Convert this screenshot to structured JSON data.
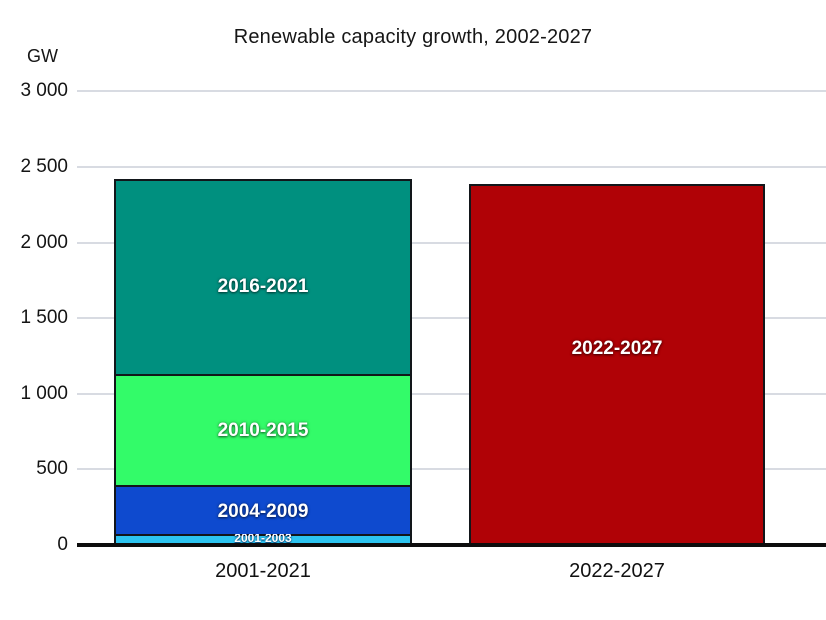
{
  "chart": {
    "title": "Renewable capacity growth, 2002-2027",
    "unit_label": "GW"
  },
  "colors": {
    "background": "#FFFFFF",
    "gridline": "#D8DBE2",
    "axis": "#0D0D0D",
    "text": "#141414",
    "segment_border": "#12161A",
    "segment_label_text": "#FFFFFF"
  },
  "chart_data": {
    "type": "bar",
    "stacked": true,
    "title": "Renewable capacity growth, 2002-2027",
    "xlabel": "",
    "ylabel": "GW",
    "ylim": [
      0,
      3000
    ],
    "ytick_interval": 500,
    "grid": true,
    "legend_position": "none (period labels drawn inside bar segments)",
    "yticks": [
      {
        "value": 3000,
        "label": "3 000"
      },
      {
        "value": 2500,
        "label": "2 500"
      },
      {
        "value": 2000,
        "label": "2 000"
      },
      {
        "value": 1500,
        "label": "1 500"
      },
      {
        "value": 1000,
        "label": "1 000"
      },
      {
        "value": 500,
        "label": "500"
      },
      {
        "value": 0,
        "label": "0"
      }
    ],
    "categories": [
      "2001-2021",
      "2022-2027"
    ],
    "bars": [
      {
        "category": "2001-2021",
        "total_gw": 2420,
        "segments": [
          {
            "label": "2001-2003",
            "value_gw": 70,
            "color": "#2CC4F1",
            "small_label": true
          },
          {
            "label": "2004-2009",
            "value_gw": 330,
            "color": "#0E4ACF"
          },
          {
            "label": "2010-2015",
            "value_gw": 730,
            "color": "#33FB69"
          },
          {
            "label": "2016-2021",
            "value_gw": 1290,
            "color": "#00907F",
            "label_dy": 8
          }
        ]
      },
      {
        "category": "2022-2027",
        "total_gw": 2390,
        "segments": [
          {
            "label": "2022-2027",
            "value_gw": 2390,
            "color": "#B00206",
            "label_dy": -18
          }
        ]
      }
    ]
  }
}
